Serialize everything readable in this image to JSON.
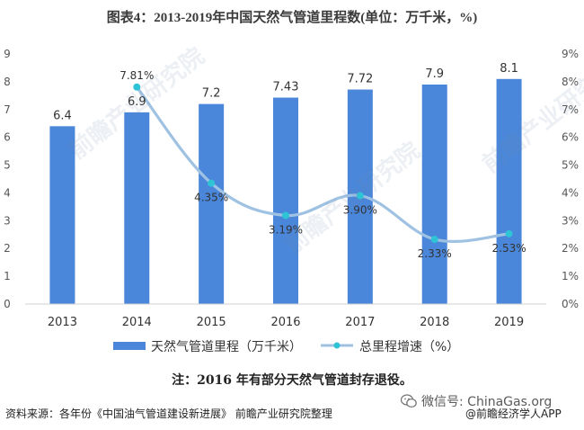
{
  "title": "图表4：2013-2019年中国天然气管道里程数(单位：万千米，%)",
  "note": "注：2016 年有部分天然气管道封存退役。",
  "source": "资料来源：各年份《中国油气管道建设新进展》 前瞻产业研究院整理",
  "wechat": "微信号: ChinaGas.org",
  "brand": "@前瞻经济学人APP",
  "watermark": "前瞻产业研究院",
  "colors": {
    "bar": "#4a86d9",
    "line": "#9fc2e3",
    "marker": "#2ec4d6",
    "axis_text": "#555555"
  },
  "chart_data": {
    "type": "bar",
    "categories": [
      "2013",
      "2014",
      "2015",
      "2016",
      "2017",
      "2018",
      "2019"
    ],
    "series": [
      {
        "name": "天然气管道里程（万千米）",
        "type": "bar",
        "axis": "left",
        "values": [
          6.4,
          6.9,
          7.2,
          7.43,
          7.72,
          7.9,
          8.1
        ],
        "labels": [
          "6.4",
          "6.9",
          "7.2",
          "7.43",
          "7.72",
          "7.9",
          "8.1"
        ]
      },
      {
        "name": "总里程增速（%）",
        "type": "line",
        "axis": "right",
        "smooth": true,
        "values": [
          null,
          7.81,
          4.35,
          3.19,
          3.9,
          2.33,
          2.53
        ],
        "labels": [
          "",
          "7.81%",
          "4.35%",
          "3.19%",
          "3.90%",
          "2.33%",
          "2.53%"
        ]
      }
    ],
    "y_left": {
      "ylim": [
        0,
        9
      ],
      "ticks": [
        "0",
        "1",
        "2",
        "3",
        "4",
        "5",
        "6",
        "7",
        "8",
        "9"
      ]
    },
    "y_right": {
      "ylim": [
        0,
        9
      ],
      "ticks": [
        "0%",
        "1%",
        "2%",
        "3%",
        "4%",
        "5%",
        "6%",
        "7%",
        "8%",
        "9%"
      ]
    },
    "grid": false,
    "legend_position": "bottom"
  }
}
